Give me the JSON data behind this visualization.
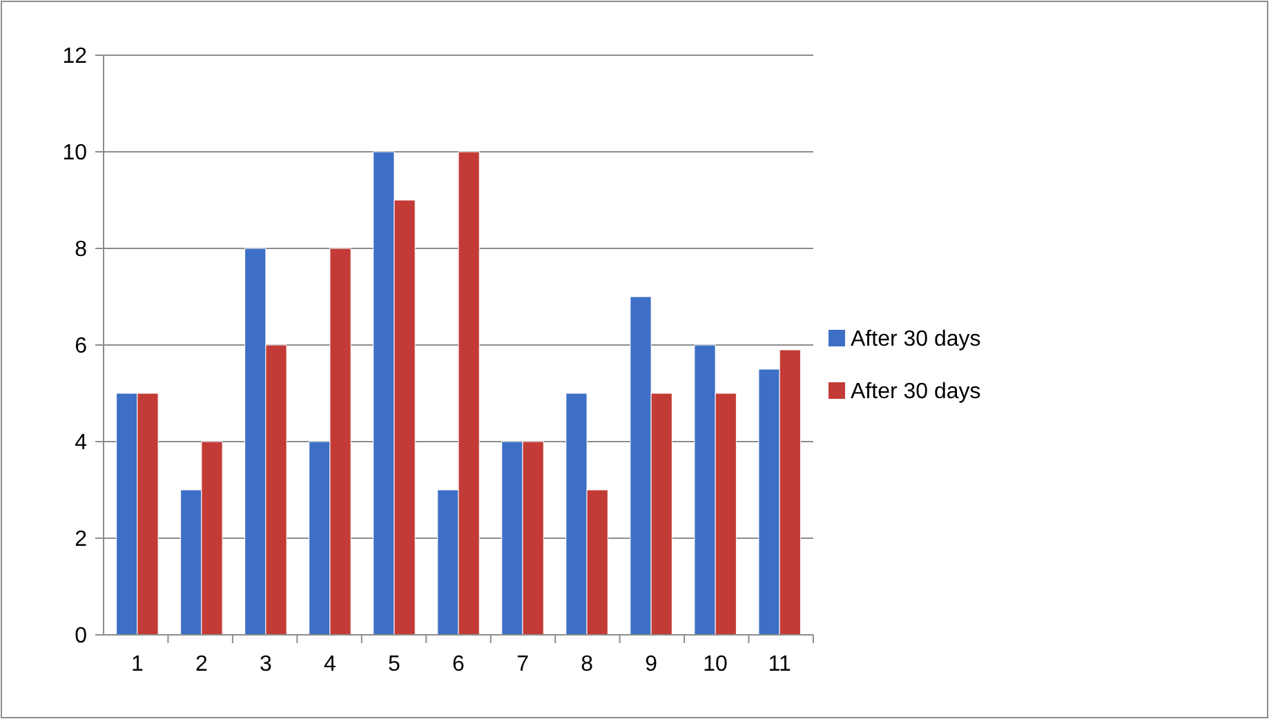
{
  "chart_data": {
    "type": "bar",
    "categories": [
      "1",
      "2",
      "3",
      "4",
      "5",
      "6",
      "7",
      "8",
      "9",
      "10",
      "11"
    ],
    "series": [
      {
        "name": "After 30 days",
        "color": "#3d6fc6",
        "values": [
          5,
          3,
          8,
          4,
          10,
          3,
          4,
          5,
          7,
          6,
          5.5
        ]
      },
      {
        "name": "After 30 days",
        "color": "#c33b36",
        "values": [
          5,
          4,
          6,
          8,
          9,
          10,
          4,
          3,
          5,
          5,
          5.9
        ]
      }
    ],
    "ylim": [
      0,
      12
    ],
    "yticks": [
      0,
      2,
      4,
      6,
      8,
      10,
      12
    ],
    "grid": "y",
    "legend": "right"
  }
}
